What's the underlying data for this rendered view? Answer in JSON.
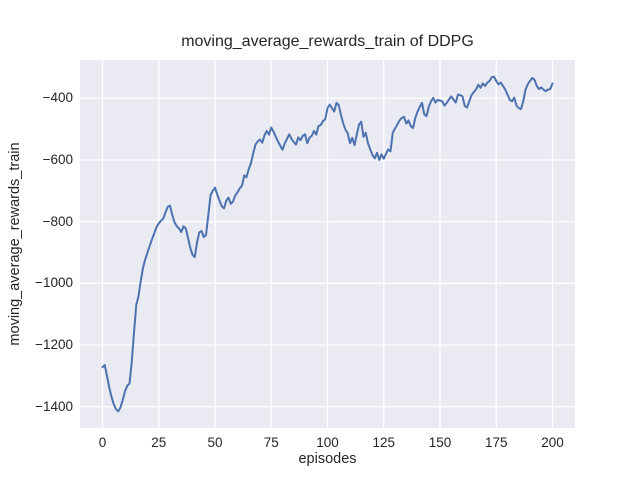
{
  "figure": {
    "background": "#ffffff",
    "axes_background": "#eaeaf2",
    "grid_color": "#ffffff",
    "text_color": "#262626"
  },
  "chart_data": {
    "type": "line",
    "title": "moving_average_rewards_train of DDPG",
    "xlabel": "episodes",
    "ylabel": "moving_average_rewards_train",
    "grid": true,
    "legend_position": "none",
    "xlim": [
      -10,
      210
    ],
    "ylim": [
      -1469,
      -276
    ],
    "x_ticks": [
      0,
      25,
      50,
      75,
      100,
      125,
      150,
      175,
      200
    ],
    "x_tick_labels": [
      "0",
      "25",
      "50",
      "75",
      "100",
      "125",
      "150",
      "175",
      "200"
    ],
    "y_ticks": [
      -1400,
      -1200,
      -1000,
      -800,
      -600,
      -400
    ],
    "y_tick_labels": [
      "−1400",
      "−1200",
      "−1000",
      "−800",
      "−600",
      "−400"
    ],
    "series": [
      {
        "name": "moving_average_rewards_train",
        "color": "#4c72b0",
        "line_width": 2,
        "x_start": 0,
        "x_step": 1,
        "y": [
          -1272,
          -1265,
          -1300,
          -1338,
          -1368,
          -1392,
          -1408,
          -1415,
          -1402,
          -1378,
          -1350,
          -1332,
          -1325,
          -1255,
          -1160,
          -1070,
          -1042,
          -992,
          -950,
          -922,
          -900,
          -878,
          -857,
          -838,
          -818,
          -806,
          -797,
          -790,
          -770,
          -752,
          -748,
          -778,
          -802,
          -815,
          -822,
          -834,
          -815,
          -822,
          -852,
          -885,
          -908,
          -915,
          -868,
          -835,
          -830,
          -850,
          -843,
          -781,
          -715,
          -700,
          -690,
          -712,
          -732,
          -750,
          -757,
          -732,
          -722,
          -742,
          -735,
          -715,
          -705,
          -692,
          -684,
          -650,
          -656,
          -630,
          -610,
          -578,
          -550,
          -540,
          -534,
          -544,
          -520,
          -506,
          -518,
          -495,
          -508,
          -525,
          -540,
          -554,
          -567,
          -546,
          -532,
          -517,
          -532,
          -542,
          -550,
          -527,
          -536,
          -522,
          -517,
          -546,
          -528,
          -522,
          -506,
          -518,
          -490,
          -487,
          -474,
          -468,
          -432,
          -421,
          -432,
          -443,
          -415,
          -422,
          -455,
          -482,
          -502,
          -514,
          -546,
          -528,
          -552,
          -518,
          -485,
          -476,
          -525,
          -512,
          -546,
          -566,
          -584,
          -595,
          -577,
          -600,
          -582,
          -596,
          -580,
          -566,
          -572,
          -512,
          -498,
          -486,
          -472,
          -464,
          -460,
          -482,
          -472,
          -490,
          -497,
          -464,
          -444,
          -428,
          -415,
          -452,
          -458,
          -428,
          -410,
          -399,
          -414,
          -405,
          -408,
          -410,
          -424,
          -415,
          -404,
          -394,
          -404,
          -414,
          -388,
          -390,
          -394,
          -425,
          -430,
          -410,
          -390,
          -380,
          -372,
          -356,
          -366,
          -352,
          -360,
          -350,
          -344,
          -332,
          -330,
          -344,
          -355,
          -349,
          -360,
          -372,
          -388,
          -405,
          -410,
          -398,
          -424,
          -432,
          -435,
          -410,
          -372,
          -355,
          -344,
          -334,
          -340,
          -360,
          -370,
          -365,
          -372,
          -377,
          -372,
          -370,
          -352
        ]
      }
    ]
  }
}
